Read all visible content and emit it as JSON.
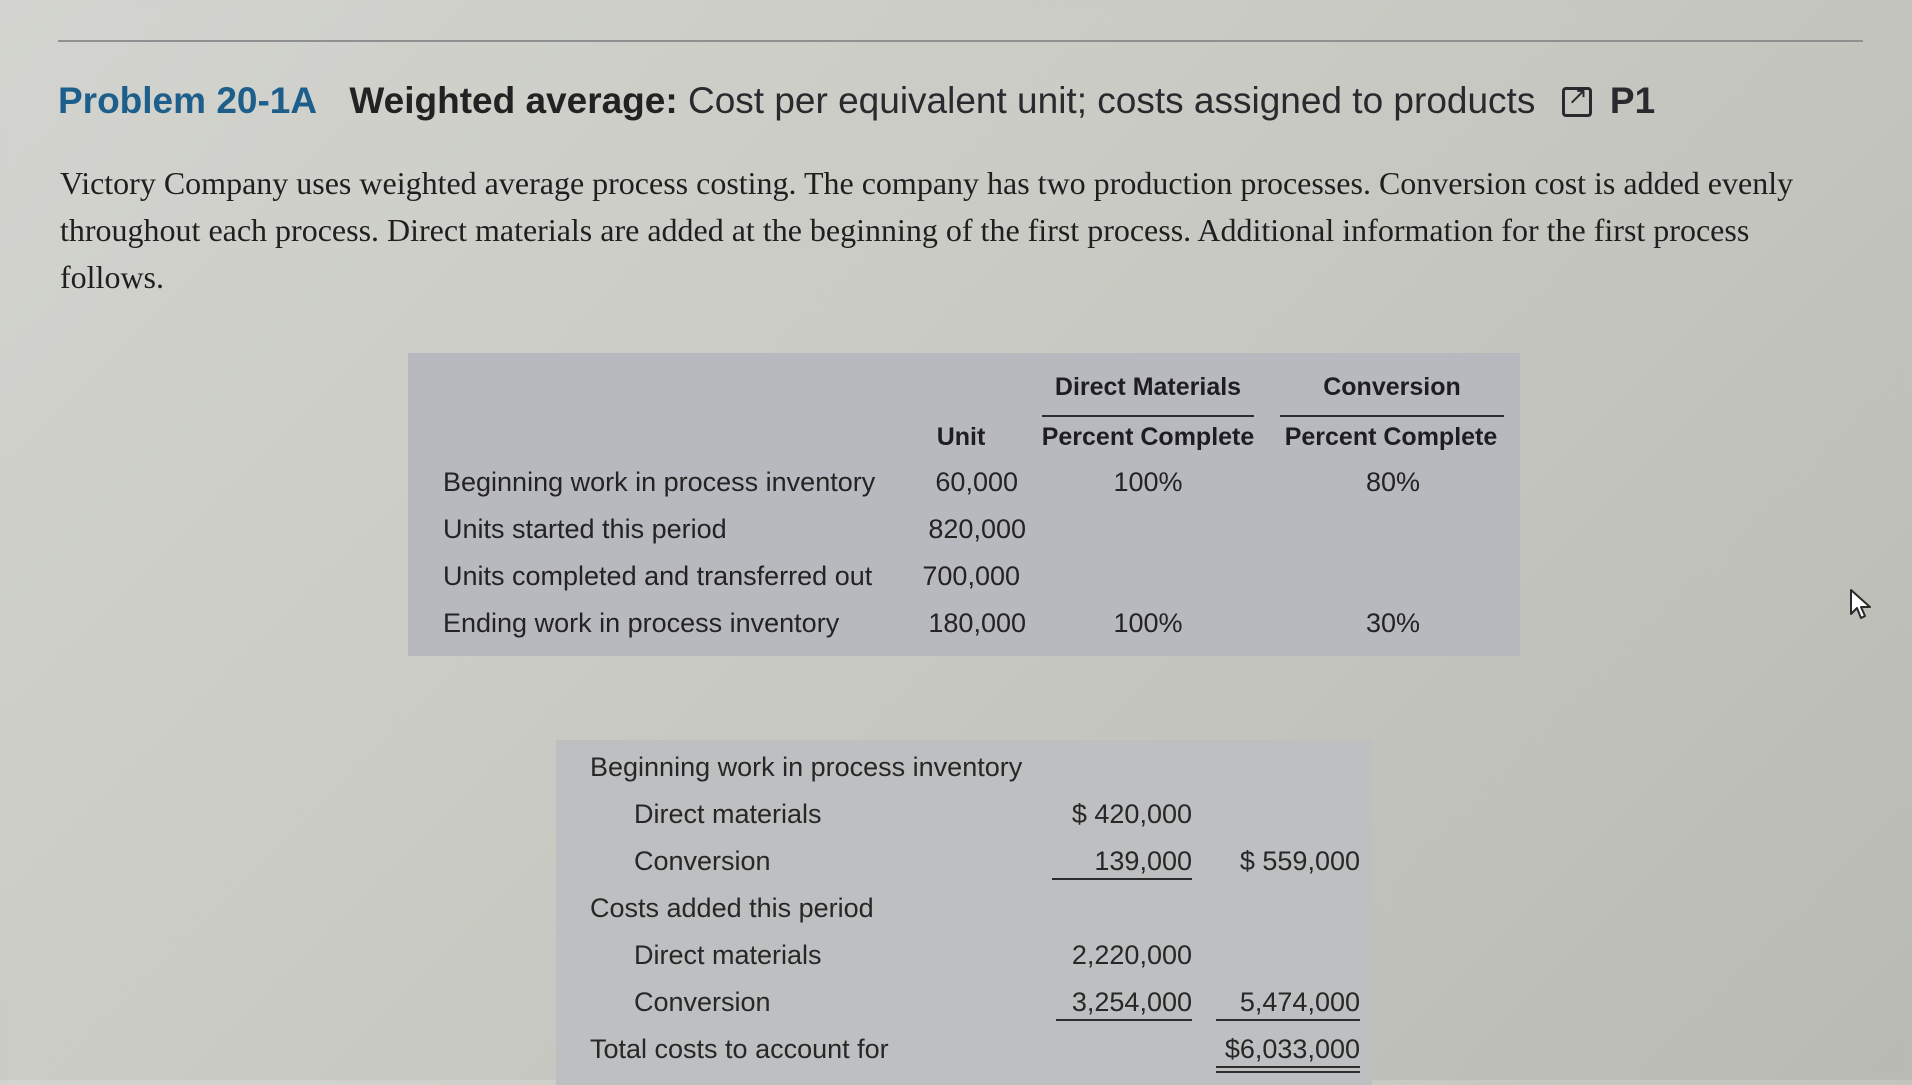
{
  "problem": {
    "number": "Problem 20-1A",
    "method": "Weighted average:",
    "description": "Cost per equivalent unit; costs assigned to products",
    "objective": "P1"
  },
  "intro_text": "Victory Company uses weighted average process costing. The company has two production processes. Conversion cost is added evenly throughout each process. Direct materials are added at the beginning of the first process. Additional information for the first process follows.",
  "unit_table": {
    "headers": {
      "dm_top": "Direct Materials",
      "conv_top": "Conversion",
      "unit": "Unit",
      "dm_pct": "Percent Complete",
      "conv_pct": "Percent Complete"
    },
    "rows": [
      {
        "label": "Beginning work in process inventory",
        "units": "60,000",
        "dm": "100%",
        "conv": "80%"
      },
      {
        "label": "Units started this period",
        "units": "820,000",
        "dm": "",
        "conv": ""
      },
      {
        "label": "Units completed and transferred out",
        "units": "700,000",
        "dm": "",
        "conv": ""
      },
      {
        "label": "Ending work in process inventory",
        "units": "180,000",
        "dm": "100%",
        "conv": "30%"
      }
    ]
  },
  "cost_table": {
    "beginning_label": "Beginning work in process inventory",
    "beg_dm_label": "Direct materials",
    "beg_dm_value": "$  420,000",
    "beg_conv_label": "Conversion",
    "beg_conv_value": "139,000",
    "beg_total": "$  559,000",
    "added_label": "Costs added this period",
    "add_dm_label": "Direct materials",
    "add_dm_value": "2,220,000",
    "add_conv_label": "Conversion",
    "add_conv_value": "3,254,000",
    "add_total": "5,474,000",
    "total_label": "Total costs to account for",
    "total_value": "$6,033,000"
  }
}
